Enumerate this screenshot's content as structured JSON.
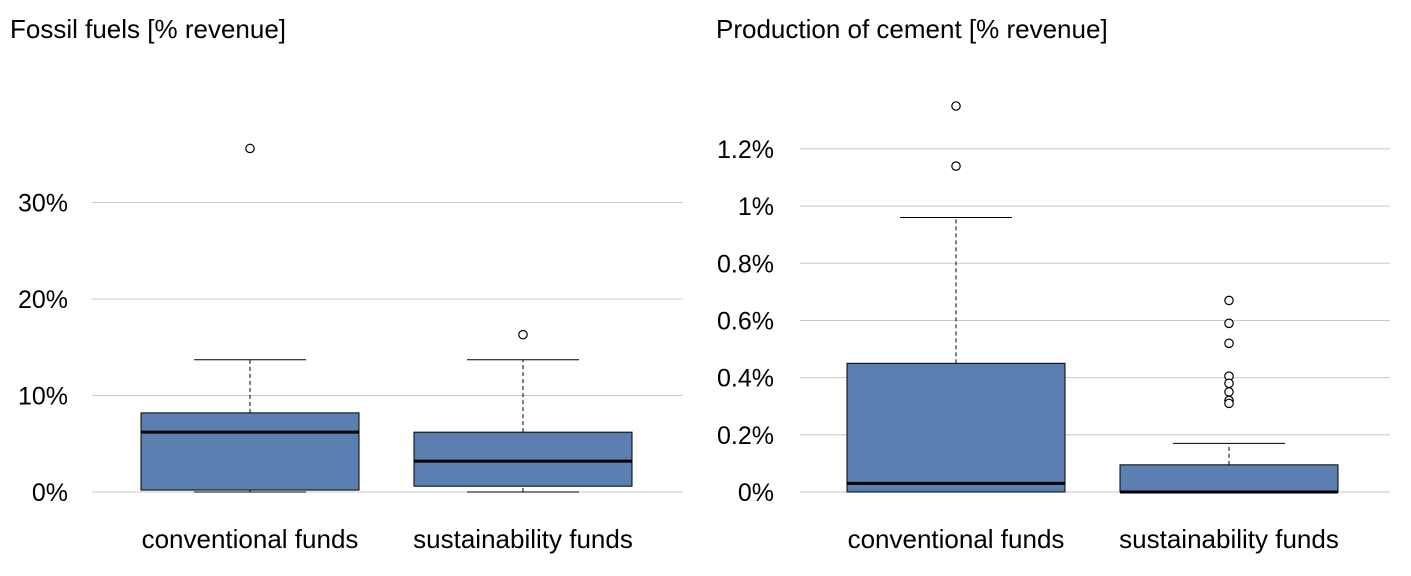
{
  "chart_data": [
    {
      "type": "boxplot",
      "title": "Fossil fuels [% revenue]",
      "ylim": [
        0,
        40
      ],
      "yticks": [
        0,
        10,
        20,
        30
      ],
      "ytick_labels": [
        "0%",
        "10%",
        "20%",
        "30%"
      ],
      "categories": [
        "conventional funds",
        "sustainability funds"
      ],
      "boxes": [
        {
          "name": "conventional funds",
          "min": 0,
          "q1": 0.2,
          "median": 6.2,
          "q3": 8.2,
          "max": 13.7,
          "outliers": [
            35.6
          ]
        },
        {
          "name": "sustainability funds",
          "min": 0,
          "q1": 0.6,
          "median": 3.2,
          "q3": 6.2,
          "max": 13.7,
          "outliers": [
            16.3
          ]
        }
      ],
      "grid": true
    },
    {
      "type": "boxplot",
      "title": "Production of cement [% revenue]",
      "ylim": [
        0,
        1.35
      ],
      "yticks": [
        0,
        0.2,
        0.4,
        0.6,
        0.8,
        1.0,
        1.2
      ],
      "ytick_labels": [
        "0%",
        "0.2%",
        "0.4%",
        "0.6%",
        "0.8%",
        "1%",
        "1.2%"
      ],
      "categories": [
        "conventional funds",
        "sustainability funds"
      ],
      "boxes": [
        {
          "name": "conventional funds",
          "min": 0,
          "q1": 0,
          "median": 0.03,
          "q3": 0.45,
          "max": 0.96,
          "outliers": [
            1.35,
            1.14
          ]
        },
        {
          "name": "sustainability funds",
          "min": 0,
          "q1": 0,
          "median": 0,
          "q3": 0.095,
          "max": 0.17,
          "outliers": [
            0.67,
            0.59,
            0.52,
            0.405,
            0.38,
            0.35,
            0.32,
            0.31
          ]
        }
      ],
      "grid": true
    }
  ]
}
